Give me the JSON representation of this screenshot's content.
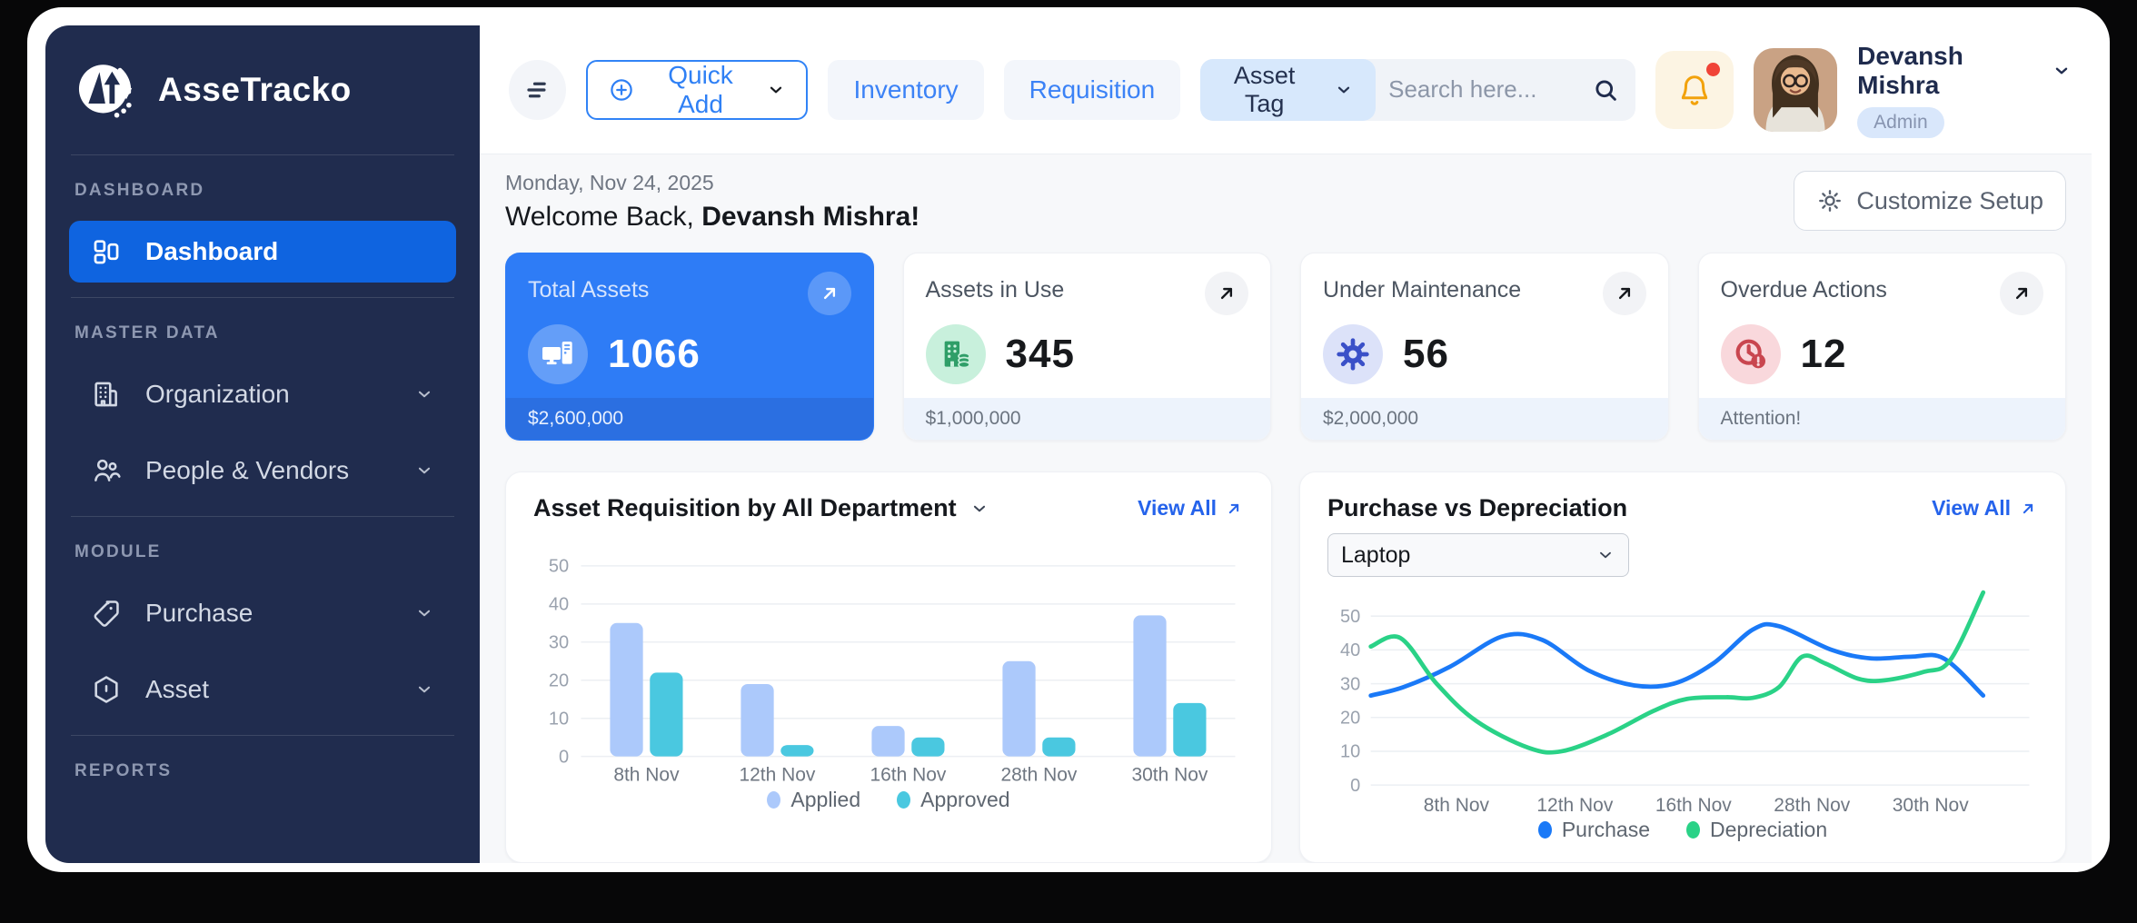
{
  "app": {
    "name": "AsseTracko"
  },
  "colors": {
    "accent": "#2E7CF6",
    "sidebar_bg": "#202C4E",
    "active_item": "#0F64E0",
    "bell": "#F2A20C",
    "notification_dot": "#F04438",
    "applied_bar": "#ACC9FB",
    "approved_bar": "#4AC8E0",
    "purchase_line": "#1A79F7",
    "depreciation_line": "#2AD287"
  },
  "sidebar": {
    "sections": [
      {
        "label": "DASHBOARD",
        "items": [
          {
            "label": "Dashboard",
            "icon": "dashboard-grid-icon",
            "active": true,
            "chevron": false
          }
        ]
      },
      {
        "label": "MASTER DATA",
        "items": [
          {
            "label": "Organization",
            "icon": "building-icon",
            "active": false,
            "chevron": true
          },
          {
            "label": "People & Vendors",
            "icon": "people-icon",
            "active": false,
            "chevron": true
          }
        ]
      },
      {
        "label": "MODULE",
        "items": [
          {
            "label": "Purchase",
            "icon": "tag-icon",
            "active": false,
            "chevron": true
          },
          {
            "label": "Asset",
            "icon": "hexagon-icon",
            "active": false,
            "chevron": true
          }
        ]
      },
      {
        "label": "REPORTS",
        "items": []
      }
    ]
  },
  "topbar": {
    "quick_add_label": "Quick Add",
    "inventory_label": "Inventory",
    "requisition_label": "Requisition",
    "search_category": "Asset Tag",
    "search_placeholder": "Search here...",
    "user": {
      "name": "Devansh Mishra",
      "role": "Admin"
    }
  },
  "header": {
    "date": "Monday, Nov 24, 2025",
    "welcome_prefix": "Welcome Back, ",
    "welcome_name": "Devansh Mishra!",
    "customize_label": "Customize Setup"
  },
  "stats": {
    "cards": [
      {
        "title": "Total Assets",
        "value": "1066",
        "footer": "$2,600,000",
        "icon": "computer-icon",
        "variant": "blue"
      },
      {
        "title": "Assets in Use",
        "value": "345",
        "footer": "$1,000,000",
        "icon": "building-coins-icon",
        "variant": "green"
      },
      {
        "title": "Under Maintenance",
        "value": "56",
        "footer": "$2,000,000",
        "icon": "gear-wrench-icon",
        "variant": "indigo"
      },
      {
        "title": "Overdue Actions",
        "value": "12",
        "footer": "Attention!",
        "icon": "clock-alert-icon",
        "variant": "red"
      }
    ]
  },
  "chart_data": [
    {
      "type": "bar",
      "title": "Asset Requisition by All Department",
      "view_all_label": "View All",
      "categories": [
        "8th Nov",
        "12th Nov",
        "16th Nov",
        "28th Nov",
        "30th Nov"
      ],
      "series": [
        {
          "name": "Applied",
          "color": "#ACC9FB",
          "values": [
            35,
            19,
            8,
            25,
            37
          ]
        },
        {
          "name": "Approved",
          "color": "#4AC8E0",
          "values": [
            22,
            3,
            5,
            5,
            14
          ]
        }
      ],
      "ylim": [
        0,
        50
      ],
      "yticks": [
        0,
        10,
        20,
        30,
        40,
        50
      ],
      "grid": true,
      "legend_position": "bottom"
    },
    {
      "type": "line",
      "title": "Purchase vs Depreciation",
      "view_all_label": "View All",
      "filter_selected": "Laptop",
      "categories": [
        "8th Nov",
        "12th Nov",
        "16th Nov",
        "28th Nov",
        "30th Nov"
      ],
      "ylim": [
        0,
        50
      ],
      "yticks": [
        0,
        10,
        20,
        30,
        40,
        50
      ],
      "grid": true,
      "legend_position": "bottom",
      "series": [
        {
          "name": "Purchase",
          "color": "#1A79F7",
          "points": [
            [
              0,
              26.5
            ],
            [
              0.05,
              29
            ],
            [
              0.12,
              35
            ],
            [
              0.2,
              44
            ],
            [
              0.26,
              43
            ],
            [
              0.33,
              34
            ],
            [
              0.4,
              29.5
            ],
            [
              0.46,
              30
            ],
            [
              0.52,
              36
            ],
            [
              0.58,
              46
            ],
            [
              0.62,
              47
            ],
            [
              0.7,
              40
            ],
            [
              0.76,
              37.5
            ],
            [
              0.82,
              38
            ],
            [
              0.87,
              37.5
            ],
            [
              0.93,
              26.5
            ]
          ]
        },
        {
          "name": "Depreciation",
          "color": "#2AD287",
          "points": [
            [
              0,
              41
            ],
            [
              0.045,
              43.5
            ],
            [
              0.1,
              30
            ],
            [
              0.16,
              19
            ],
            [
              0.24,
              11
            ],
            [
              0.29,
              10
            ],
            [
              0.36,
              15
            ],
            [
              0.43,
              22
            ],
            [
              0.48,
              25.5
            ],
            [
              0.54,
              26
            ],
            [
              0.58,
              25.8
            ],
            [
              0.62,
              29
            ],
            [
              0.655,
              38
            ],
            [
              0.69,
              36
            ],
            [
              0.74,
              31.5
            ],
            [
              0.78,
              31
            ],
            [
              0.84,
              33.5
            ],
            [
              0.88,
              37
            ],
            [
              0.93,
              57
            ]
          ]
        }
      ]
    }
  ]
}
